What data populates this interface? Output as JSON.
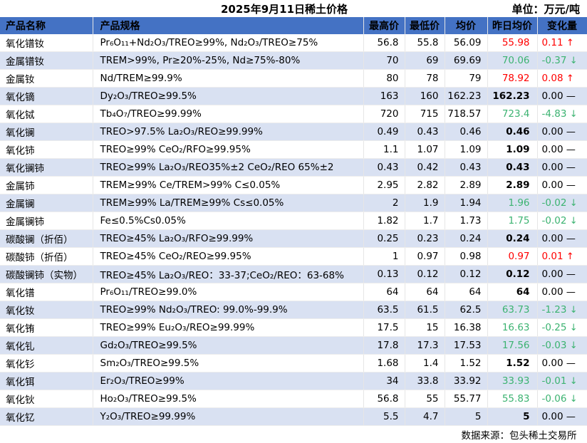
{
  "title": "2025年9月11日稀土价格",
  "unit": "单位：万元/吨",
  "headers": [
    "产品名称",
    "产品规格",
    "最高价",
    "最低价",
    "均价",
    "昨日均价",
    "变化量"
  ],
  "rows": [
    {
      "name": "氧化镨钕",
      "spec": "Pr₆O₁₁+Nd₂O₃/TREO≥99%, Nd₂O₃/TREO≥75%",
      "high": "56.8",
      "low": "55.8",
      "avg": "56.09",
      "yesterday": "55.98",
      "change": "0.11",
      "trend": "up"
    },
    {
      "name": "金属镨钕",
      "spec": "TREM>99%, Pr≥20%-25%, Nd≥75%-80%",
      "high": "70",
      "low": "69",
      "avg": "69.69",
      "yesterday": "70.06",
      "change": "-0.37",
      "trend": "down"
    },
    {
      "name": "金属钕",
      "spec": "Nd/TREM≥99.9%",
      "high": "80",
      "low": "78",
      "avg": "79",
      "yesterday": "78.92",
      "change": "0.08",
      "trend": "up"
    },
    {
      "name": "氧化镝",
      "spec": "Dy₂O₃/TREO≥99.5%",
      "high": "163",
      "low": "160",
      "avg": "162.23",
      "yesterday": "162.23",
      "change": "0.00",
      "trend": "flat"
    },
    {
      "name": "氧化铽",
      "spec": "Tb₄O₇/TREO≥99.99%",
      "high": "720",
      "low": "715",
      "avg": "718.57",
      "yesterday": "723.4",
      "change": "-4.83",
      "trend": "down"
    },
    {
      "name": "氧化镧",
      "spec": "TREO>97.5% La₂O₃/REO≥99.99%",
      "high": "0.49",
      "low": "0.43",
      "avg": "0.46",
      "yesterday": "0.46",
      "change": "0.00",
      "trend": "flat"
    },
    {
      "name": "氧化铈",
      "spec": "TREO≥99% CeO₂/RFO≥99.95%",
      "high": "1.1",
      "low": "1.07",
      "avg": "1.09",
      "yesterday": "1.09",
      "change": "0.00",
      "trend": "flat"
    },
    {
      "name": "氧化镧铈",
      "spec": "TREO≥99% La₂O₃/REO35%±2 CeO₂/REO 65%±2",
      "high": "0.43",
      "low": "0.42",
      "avg": "0.43",
      "yesterday": "0.43",
      "change": "0.00",
      "trend": "flat"
    },
    {
      "name": "金属铈",
      "spec": "TREM≥99% Ce/TREM>99% C≤0.05%",
      "high": "2.95",
      "low": "2.82",
      "avg": "2.89",
      "yesterday": "2.89",
      "change": "0.00",
      "trend": "flat"
    },
    {
      "name": "金属镧",
      "spec": "TREM≥99% La/TREM≥99% Cs≤0.05%",
      "high": "2",
      "low": "1.9",
      "avg": "1.94",
      "yesterday": "1.96",
      "change": "-0.02",
      "trend": "down"
    },
    {
      "name": "金属镧铈",
      "spec": "Fe≤0.5%Cs0.05%",
      "high": "1.82",
      "low": "1.7",
      "avg": "1.73",
      "yesterday": "1.75",
      "change": "-0.02",
      "trend": "down"
    },
    {
      "name": "碳酸镧（折佰）",
      "spec": "TREO≥45% La₂O₃/RFO≥99.99%",
      "high": "0.25",
      "low": "0.23",
      "avg": "0.24",
      "yesterday": "0.24",
      "change": "0.00",
      "trend": "flat"
    },
    {
      "name": "碳酸铈（折佰）",
      "spec": "TREO≥45% CeO₂/REO≥99.95%",
      "high": "1",
      "low": "0.97",
      "avg": "0.98",
      "yesterday": "0.97",
      "change": "0.01",
      "trend": "up"
    },
    {
      "name": "碳酸镧铈（实物）",
      "spec": "TREO≥45% La₂O₃/REO：33-37;CeO₂/REO：63-68%",
      "high": "0.13",
      "low": "0.12",
      "avg": "0.12",
      "yesterday": "0.12",
      "change": "0.00",
      "trend": "flat"
    },
    {
      "name": "氧化镨",
      "spec": "Pr₆O₁₁/TREO≥99.0%",
      "high": "64",
      "low": "64",
      "avg": "64",
      "yesterday": "64",
      "change": "0.00",
      "trend": "flat"
    },
    {
      "name": "氧化钕",
      "spec": "TREO≥99% Nd₂O₃/TREO: 99.0%-99.9%",
      "high": "63.5",
      "low": "61.5",
      "avg": "62.5",
      "yesterday": "63.73",
      "change": "-1.23",
      "trend": "down"
    },
    {
      "name": "氧化铕",
      "spec": "TREO≥99% Eu₂O₃/REO≥99.99%",
      "high": "17.5",
      "low": "15",
      "avg": "16.38",
      "yesterday": "16.63",
      "change": "-0.25",
      "trend": "down"
    },
    {
      "name": "氧化钆",
      "spec": "Gd₂O₃/TREO≥99.5%",
      "high": "17.8",
      "low": "17.3",
      "avg": "17.53",
      "yesterday": "17.56",
      "change": "-0.03",
      "trend": "down"
    },
    {
      "name": "氧化钐",
      "spec": "Sm₂O₃/TREO≥99.5%",
      "high": "1.68",
      "low": "1.4",
      "avg": "1.52",
      "yesterday": "1.52",
      "change": "0.00",
      "trend": "flat"
    },
    {
      "name": "氧化铒",
      "spec": "Er₂O₃/TREO≥99%",
      "high": "34",
      "low": "33.8",
      "avg": "33.92",
      "yesterday": "33.93",
      "change": "-0.01",
      "trend": "down"
    },
    {
      "name": "氧化钬",
      "spec": "Ho₂O₃/TREO≥99.5%",
      "high": "56.8",
      "low": "55",
      "avg": "55.77",
      "yesterday": "55.83",
      "change": "-0.06",
      "trend": "down"
    },
    {
      "name": "氧化钇",
      "spec": "Y₂O₃/TREO≥99.99%",
      "high": "5.5",
      "low": "4.7",
      "avg": "5",
      "yesterday": "5",
      "change": "0.00",
      "trend": "flat"
    }
  ],
  "source": "数据来源：包头稀土交易所",
  "colors": {
    "header_bg": "#4472c4",
    "band_bg": "#d9e1f2",
    "up": "#ff0000",
    "down": "#3cb371"
  },
  "arrows": {
    "up": "↑",
    "down": "↓",
    "flat": "—"
  }
}
